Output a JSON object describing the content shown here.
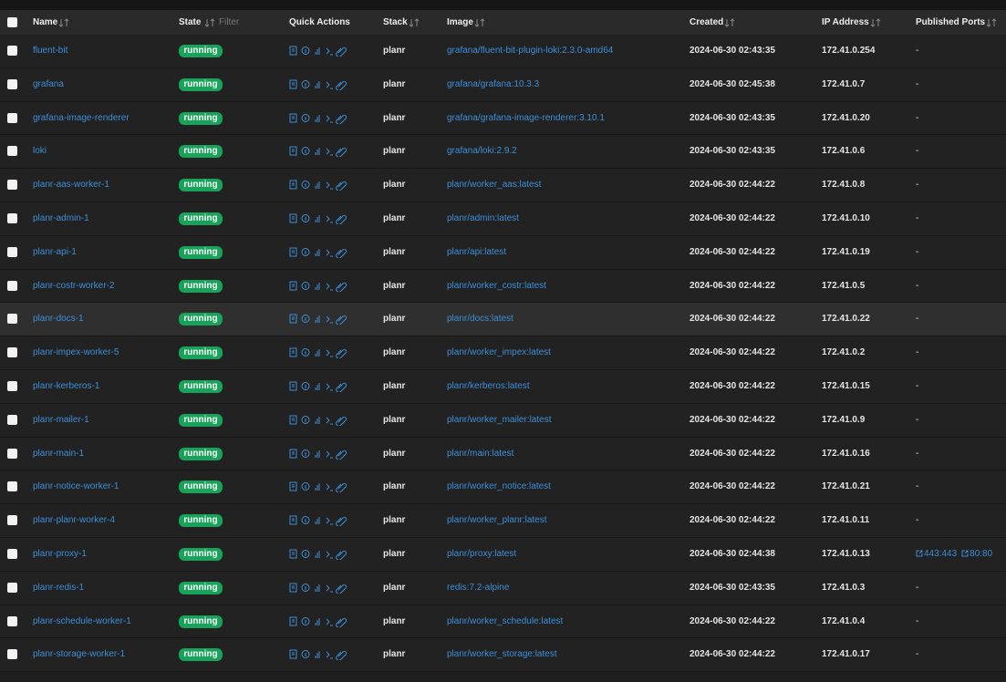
{
  "header": {
    "name": "Name",
    "state": "State",
    "state_filter": "Filter",
    "quick_actions": "Quick Actions",
    "stack": "Stack",
    "image": "Image",
    "created": "Created",
    "ip": "IP Address",
    "ports": "Published Ports"
  },
  "table": {
    "rows": [
      {
        "name": "fluent-bit",
        "state": "running",
        "stack": "planr",
        "image": "grafana/fluent-bit-plugin-loki:2.3.0-amd64",
        "created": "2024-06-30 02:43:35",
        "ip": "172.41.0.254",
        "ports": "-"
      },
      {
        "name": "grafana",
        "state": "running",
        "stack": "planr",
        "image": "grafana/grafana:10.3.3",
        "created": "2024-06-30 02:45:38",
        "ip": "172.41.0.7",
        "ports": "-"
      },
      {
        "name": "grafana-image-renderer",
        "state": "running",
        "stack": "planr",
        "image": "grafana/grafana-image-renderer:3.10.1",
        "created": "2024-06-30 02:43:35",
        "ip": "172.41.0.20",
        "ports": "-"
      },
      {
        "name": "loki",
        "state": "running",
        "stack": "planr",
        "image": "grafana/loki:2.9.2",
        "created": "2024-06-30 02:43:35",
        "ip": "172.41.0.6",
        "ports": "-"
      },
      {
        "name": "planr-aas-worker-1",
        "state": "running",
        "stack": "planr",
        "image": "planr/worker_aas:latest",
        "created": "2024-06-30 02:44:22",
        "ip": "172.41.0.8",
        "ports": "-"
      },
      {
        "name": "planr-admin-1",
        "state": "running",
        "stack": "planr",
        "image": "planr/admin:latest",
        "created": "2024-06-30 02:44:22",
        "ip": "172.41.0.10",
        "ports": "-"
      },
      {
        "name": "planr-api-1",
        "state": "running",
        "stack": "planr",
        "image": "planr/api:latest",
        "created": "2024-06-30 02:44:22",
        "ip": "172.41.0.19",
        "ports": "-"
      },
      {
        "name": "planr-costr-worker-2",
        "state": "running",
        "stack": "planr",
        "image": "planr/worker_costr:latest",
        "created": "2024-06-30 02:44:22",
        "ip": "172.41.0.5",
        "ports": "-"
      },
      {
        "name": "planr-docs-1",
        "state": "running",
        "stack": "planr",
        "image": "planr/docs:latest",
        "created": "2024-06-30 02:44:22",
        "ip": "172.41.0.22",
        "ports": "-"
      },
      {
        "name": "planr-impex-worker-5",
        "state": "running",
        "stack": "planr",
        "image": "planr/worker_impex:latest",
        "created": "2024-06-30 02:44:22",
        "ip": "172.41.0.2",
        "ports": "-"
      },
      {
        "name": "planr-kerberos-1",
        "state": "running",
        "stack": "planr",
        "image": "planr/kerberos:latest",
        "created": "2024-06-30 02:44:22",
        "ip": "172.41.0.15",
        "ports": "-"
      },
      {
        "name": "planr-mailer-1",
        "state": "running",
        "stack": "planr",
        "image": "planr/worker_mailer:latest",
        "created": "2024-06-30 02:44:22",
        "ip": "172.41.0.9",
        "ports": "-"
      },
      {
        "name": "planr-main-1",
        "state": "running",
        "stack": "planr",
        "image": "planr/main:latest",
        "created": "2024-06-30 02:44:22",
        "ip": "172.41.0.16",
        "ports": "-"
      },
      {
        "name": "planr-notice-worker-1",
        "state": "running",
        "stack": "planr",
        "image": "planr/worker_notice:latest",
        "created": "2024-06-30 02:44:22",
        "ip": "172.41.0.21",
        "ports": "-"
      },
      {
        "name": "planr-planr-worker-4",
        "state": "running",
        "stack": "planr",
        "image": "planr/worker_planr:latest",
        "created": "2024-06-30 02:44:22",
        "ip": "172.41.0.11",
        "ports": "-"
      },
      {
        "name": "planr-proxy-1",
        "state": "running",
        "stack": "planr",
        "image": "planr/proxy:latest",
        "created": "2024-06-30 02:44:38",
        "ip": "172.41.0.13",
        "ports": [
          "443:443",
          "80:80"
        ]
      },
      {
        "name": "planr-redis-1",
        "state": "running",
        "stack": "planr",
        "image": "redis:7.2-alpine",
        "created": "2024-06-30 02:43:35",
        "ip": "172.41.0.3",
        "ports": "-"
      },
      {
        "name": "planr-schedule-worker-1",
        "state": "running",
        "stack": "planr",
        "image": "planr/worker_schedule:latest",
        "created": "2024-06-30 02:44:22",
        "ip": "172.41.0.4",
        "ports": "-"
      },
      {
        "name": "planr-storage-worker-1",
        "state": "running",
        "stack": "planr",
        "image": "planr/worker_storage:latest",
        "created": "2024-06-30 02:44:22",
        "ip": "172.41.0.17",
        "ports": "-"
      }
    ]
  }
}
